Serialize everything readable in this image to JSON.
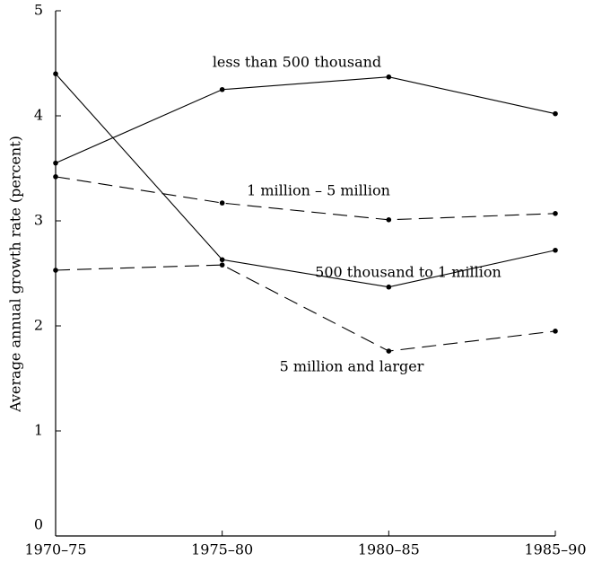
{
  "chart_data": {
    "type": "line",
    "y_label": "Average annual growth rate (percent)",
    "categories": [
      "1970–75",
      "1975–80",
      "1980–85",
      "1985–90"
    ],
    "series": [
      {
        "name": "less than 500 thousand",
        "color": "#000000",
        "style": "solid",
        "values": [
          3.55,
          4.25,
          4.37,
          4.02
        ]
      },
      {
        "name": "500 thousand to 1 million",
        "color": "#000000",
        "style": "solid",
        "values": [
          4.4,
          2.63,
          2.37,
          2.72
        ]
      },
      {
        "name": "1 million – 5 million",
        "color": "#000000",
        "style": "dashed",
        "values": [
          3.42,
          3.17,
          3.01,
          3.07
        ]
      },
      {
        "name": "5 million and larger",
        "color": "#000000",
        "style": "dashed",
        "values": [
          2.53,
          2.58,
          1.76,
          1.95
        ]
      }
    ],
    "ylim": [
      0,
      5
    ],
    "yticks": [
      0,
      1,
      2,
      3,
      4,
      5
    ],
    "grid": false
  }
}
